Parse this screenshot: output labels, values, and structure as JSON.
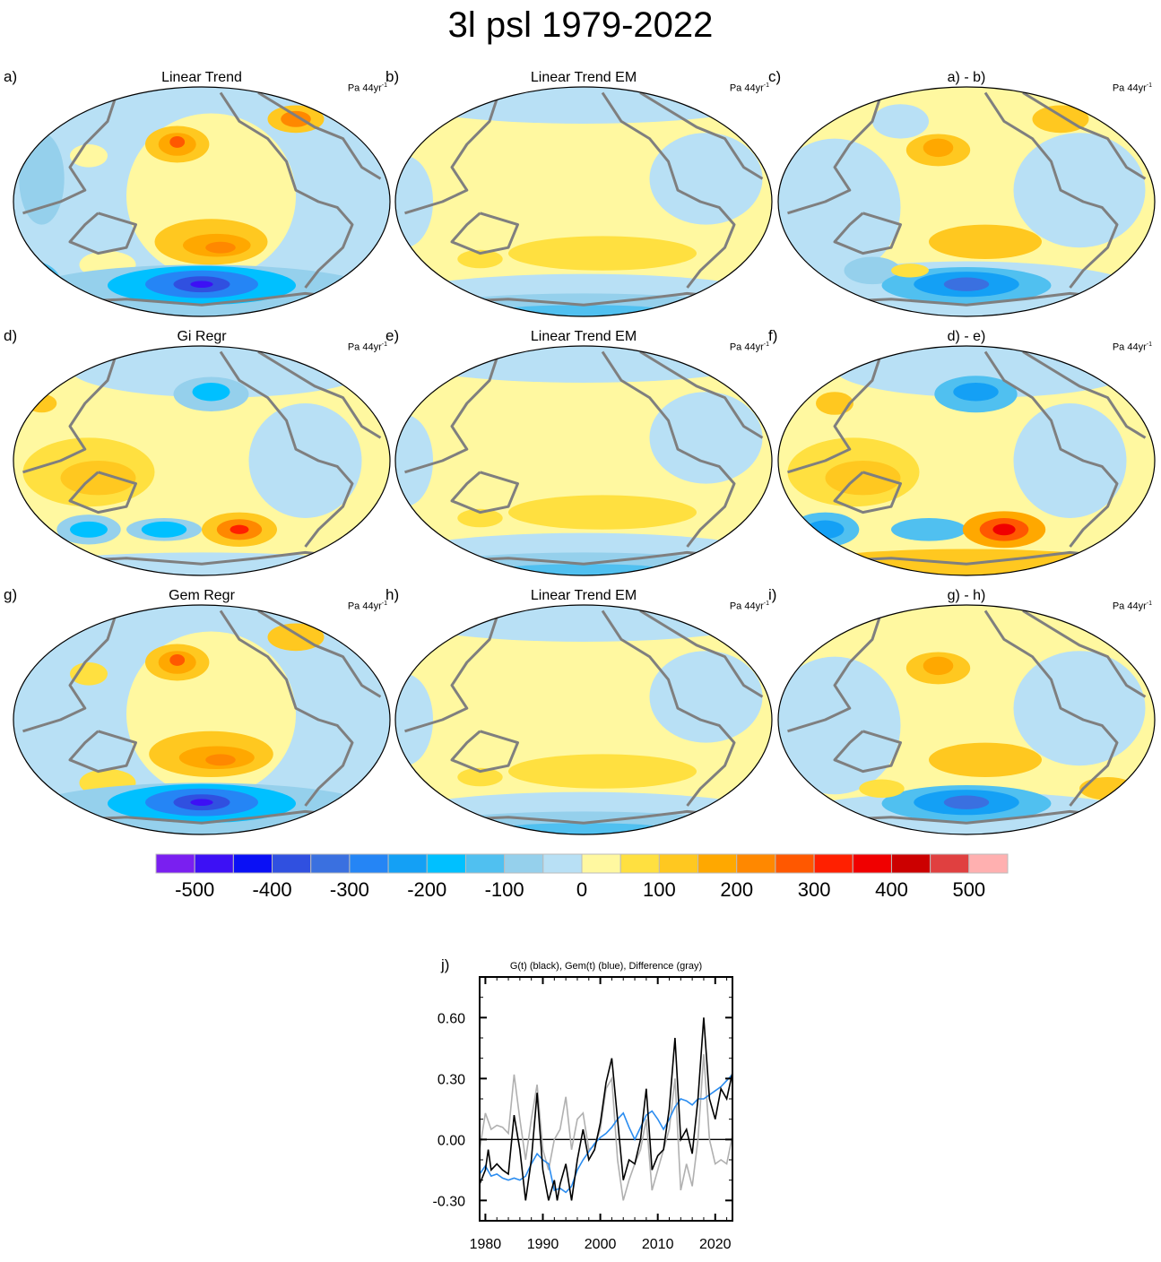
{
  "title": "3l psl 1979-2022",
  "panels": [
    {
      "label": "a)",
      "title": "Linear Trend",
      "units": "Pa 44yr",
      "units_sup": "-1",
      "field": "A"
    },
    {
      "label": "b)",
      "title": "Linear Trend EM",
      "units": "Pa 44yr",
      "units_sup": "-1",
      "field": "B"
    },
    {
      "label": "c)",
      "title": "a) - b)",
      "units": "Pa 44yr",
      "units_sup": "-1",
      "field": "C"
    },
    {
      "label": "d)",
      "title": "Gi Regr",
      "units": "Pa 44yr",
      "units_sup": "-1",
      "field": "D"
    },
    {
      "label": "e)",
      "title": "Linear Trend EM",
      "units": "Pa 44yr",
      "units_sup": "-1",
      "field": "B"
    },
    {
      "label": "f)",
      "title": "d) - e)",
      "units": "Pa 44yr",
      "units_sup": "-1",
      "field": "F"
    },
    {
      "label": "g)",
      "title": "Gem Regr",
      "units": "Pa 44yr",
      "units_sup": "-1",
      "field": "G"
    },
    {
      "label": "h)",
      "title": "Linear Trend EM",
      "units": "Pa 44yr",
      "units_sup": "-1",
      "field": "B"
    },
    {
      "label": "i)",
      "title": "g) - h)",
      "units": "Pa 44yr",
      "units_sup": "-1",
      "field": "I"
    }
  ],
  "colorbar": {
    "levels_min": -550,
    "levels_step": 50,
    "colors": [
      "#7a1ff0",
      "#3d10f5",
      "#0a10f5",
      "#3050e0",
      "#3a70e0",
      "#2585f5",
      "#14a0f5",
      "#00c0ff",
      "#50c0f0",
      "#95d0ec",
      "#b8e0f5",
      "#fff8a0",
      "#ffe040",
      "#ffc820",
      "#ffa800",
      "#ff8800",
      "#ff5800",
      "#ff2000",
      "#f00000",
      "#cc0000",
      "#e04040",
      "#ffb0b0"
    ],
    "tick_labels": [
      "-500",
      "-400",
      "-300",
      "-200",
      "-100",
      "0",
      "100",
      "200",
      "300",
      "400",
      "500"
    ],
    "tick_values": [
      -500,
      -400,
      -300,
      -200,
      -100,
      0,
      100,
      200,
      300,
      400,
      500
    ]
  },
  "chart_data": {
    "type": "line",
    "label": "j)",
    "title": "G(t)  (black), Gem(t) (blue), Difference (gray)",
    "xlim": [
      1979,
      2023
    ],
    "ylim": [
      -0.4,
      0.8
    ],
    "x_ticks": [
      1980,
      1990,
      2000,
      2010,
      2020
    ],
    "x_tick_labels": [
      "1980",
      "1990",
      "2000",
      "2010",
      "2020"
    ],
    "y_ticks": [
      -0.3,
      0.0,
      0.3,
      0.6
    ],
    "y_tick_labels": [
      "-0.30",
      "0.00",
      "0.30",
      "0.60"
    ],
    "zero_line": true,
    "series": [
      {
        "name": "Difference",
        "color": "#b0b0b0",
        "points": [
          [
            1979,
            -0.05
          ],
          [
            1980,
            0.13
          ],
          [
            1981,
            0.05
          ],
          [
            1982,
            0.07
          ],
          [
            1983,
            0.06
          ],
          [
            1984,
            0.03
          ],
          [
            1985,
            0.32
          ],
          [
            1986,
            0.1
          ],
          [
            1987,
            -0.1
          ],
          [
            1988,
            0.1
          ],
          [
            1989,
            0.27
          ],
          [
            1990,
            -0.05
          ],
          [
            1991,
            -0.15
          ],
          [
            1992,
            0.0
          ],
          [
            1993,
            0.05
          ],
          [
            1994,
            0.21
          ],
          [
            1995,
            -0.05
          ],
          [
            1996,
            0.1
          ],
          [
            1997,
            0.13
          ],
          [
            1998,
            -0.05
          ],
          [
            1999,
            -0.03
          ],
          [
            2000,
            0.05
          ],
          [
            2001,
            0.25
          ],
          [
            2002,
            0.3
          ],
          [
            2003,
            -0.1
          ],
          [
            2004,
            -0.3
          ],
          [
            2005,
            -0.2
          ],
          [
            2006,
            -0.12
          ],
          [
            2007,
            -0.05
          ],
          [
            2008,
            0.1
          ],
          [
            2009,
            -0.25
          ],
          [
            2010,
            -0.15
          ],
          [
            2011,
            -0.05
          ],
          [
            2012,
            0.05
          ],
          [
            2013,
            0.3
          ],
          [
            2014,
            -0.25
          ],
          [
            2015,
            -0.12
          ],
          [
            2016,
            -0.23
          ],
          [
            2017,
            0.0
          ],
          [
            2018,
            0.42
          ],
          [
            2019,
            0.0
          ],
          [
            2020,
            -0.12
          ],
          [
            2021,
            -0.1
          ],
          [
            2022,
            -0.12
          ],
          [
            2023,
            0.02
          ]
        ]
      },
      {
        "name": "Gem(t)",
        "color": "#2a8cf0",
        "points": [
          [
            1979,
            -0.17
          ],
          [
            1980,
            -0.13
          ],
          [
            1981,
            -0.18
          ],
          [
            1982,
            -0.17
          ],
          [
            1983,
            -0.19
          ],
          [
            1984,
            -0.2
          ],
          [
            1985,
            -0.19
          ],
          [
            1986,
            -0.2
          ],
          [
            1987,
            -0.18
          ],
          [
            1988,
            -0.12
          ],
          [
            1989,
            -0.07
          ],
          [
            1990,
            -0.1
          ],
          [
            1991,
            -0.12
          ],
          [
            1992,
            -0.25
          ],
          [
            1993,
            -0.24
          ],
          [
            1994,
            -0.26
          ],
          [
            1995,
            -0.23
          ],
          [
            1996,
            -0.15
          ],
          [
            1997,
            -0.1
          ],
          [
            1998,
            -0.06
          ],
          [
            1999,
            -0.02
          ],
          [
            2000,
            0.01
          ],
          [
            2001,
            0.03
          ],
          [
            2002,
            0.06
          ],
          [
            2003,
            0.1
          ],
          [
            2004,
            0.13
          ],
          [
            2005,
            0.06
          ],
          [
            2006,
            0.0
          ],
          [
            2007,
            0.06
          ],
          [
            2008,
            0.12
          ],
          [
            2009,
            0.14
          ],
          [
            2010,
            0.1
          ],
          [
            2011,
            0.05
          ],
          [
            2012,
            0.1
          ],
          [
            2013,
            0.16
          ],
          [
            2014,
            0.2
          ],
          [
            2015,
            0.19
          ],
          [
            2016,
            0.17
          ],
          [
            2017,
            0.2
          ],
          [
            2018,
            0.2
          ],
          [
            2019,
            0.22
          ],
          [
            2020,
            0.24
          ],
          [
            2021,
            0.26
          ],
          [
            2022,
            0.29
          ],
          [
            2023,
            0.32
          ]
        ]
      },
      {
        "name": "G(t)",
        "color": "#000000",
        "points": [
          [
            1979,
            -0.22
          ],
          [
            1980,
            -0.15
          ],
          [
            1980.5,
            -0.05
          ],
          [
            1981,
            -0.15
          ],
          [
            1982,
            -0.12
          ],
          [
            1983,
            -0.15
          ],
          [
            1984,
            -0.17
          ],
          [
            1985,
            0.12
          ],
          [
            1986,
            -0.05
          ],
          [
            1987,
            -0.3
          ],
          [
            1988,
            -0.1
          ],
          [
            1989,
            0.23
          ],
          [
            1990,
            -0.15
          ],
          [
            1991,
            -0.3
          ],
          [
            1992,
            -0.2
          ],
          [
            1992.5,
            -0.3
          ],
          [
            1993,
            -0.22
          ],
          [
            1994,
            -0.12
          ],
          [
            1995,
            -0.3
          ],
          [
            1996,
            -0.1
          ],
          [
            1997,
            0.05
          ],
          [
            1998,
            -0.1
          ],
          [
            1999,
            -0.05
          ],
          [
            2000,
            0.08
          ],
          [
            2001,
            0.28
          ],
          [
            2002,
            0.4
          ],
          [
            2003,
            0.1
          ],
          [
            2004,
            -0.2
          ],
          [
            2005,
            -0.1
          ],
          [
            2006,
            -0.12
          ],
          [
            2007,
            0.0
          ],
          [
            2008,
            0.25
          ],
          [
            2009,
            -0.15
          ],
          [
            2010,
            -0.08
          ],
          [
            2011,
            -0.05
          ],
          [
            2012,
            0.15
          ],
          [
            2013,
            0.5
          ],
          [
            2014,
            0.0
          ],
          [
            2015,
            0.05
          ],
          [
            2016,
            -0.07
          ],
          [
            2017,
            0.2
          ],
          [
            2018,
            0.6
          ],
          [
            2019,
            0.2
          ],
          [
            2020,
            0.1
          ],
          [
            2021,
            0.25
          ],
          [
            2022,
            0.2
          ],
          [
            2023,
            0.33
          ]
        ]
      }
    ]
  }
}
